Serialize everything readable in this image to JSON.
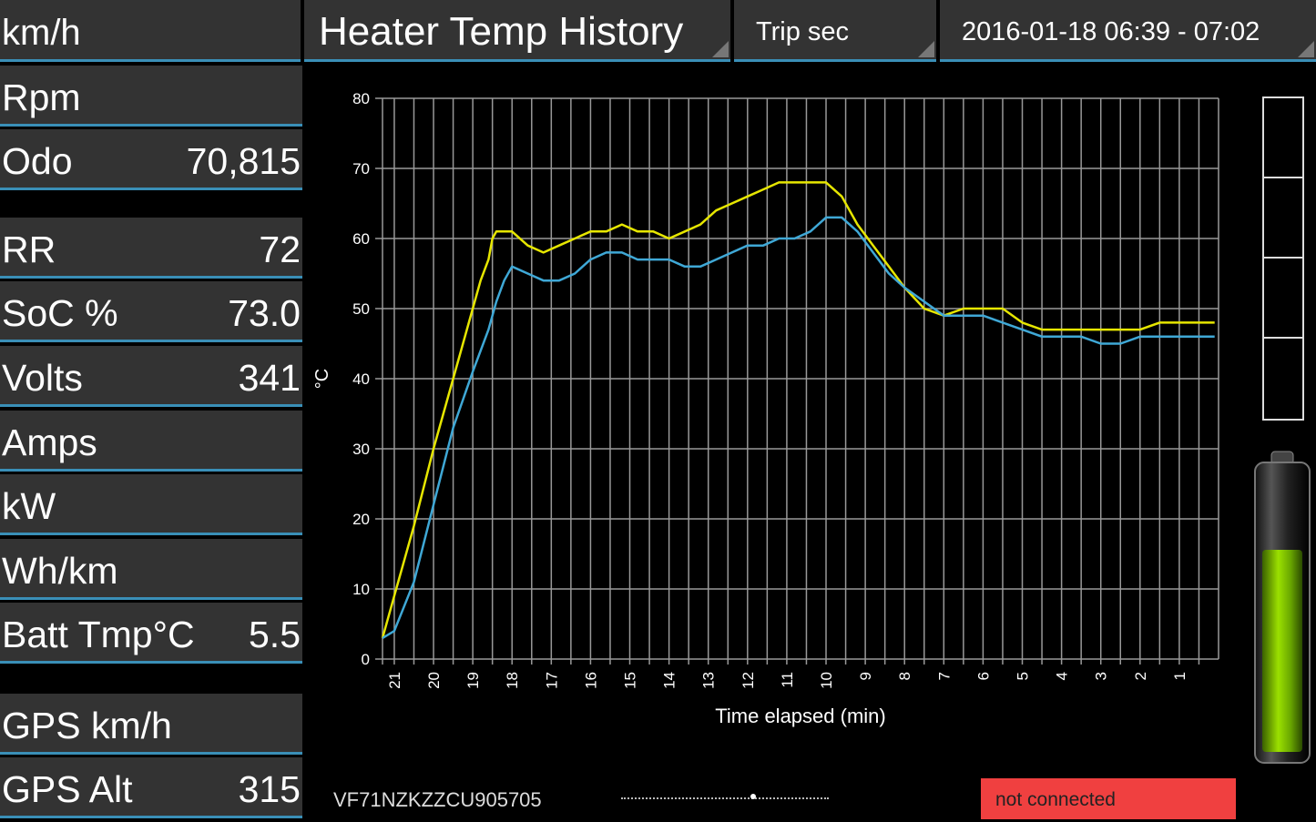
{
  "header": {
    "speed_label": "km/h",
    "title": "Heater Temp History",
    "trip_label": "Trip sec",
    "date_range": "2016-01-18 06:39 - 07:02"
  },
  "left_panel": {
    "rows": [
      {
        "label": "Rpm",
        "value": ""
      },
      {
        "label": "Odo",
        "value": "70,815"
      },
      {
        "label": "RR",
        "value": "72"
      },
      {
        "label": "SoC %",
        "value": "73.0"
      },
      {
        "label": "Volts",
        "value": "341"
      },
      {
        "label": "Amps",
        "value": ""
      },
      {
        "label": "kW",
        "value": ""
      },
      {
        "label": "Wh/km",
        "value": ""
      },
      {
        "label": "Batt Tmp°C",
        "value": "5.5"
      },
      {
        "label": "GPS km/h",
        "value": ""
      },
      {
        "label": "GPS Alt",
        "value": "315"
      }
    ]
  },
  "chart_data": {
    "type": "line",
    "title": "",
    "xlabel": "Time elapsed (min)",
    "ylabel": "°C",
    "ylim": [
      0,
      80
    ],
    "y_ticks": [
      0,
      10,
      20,
      30,
      40,
      50,
      60,
      70,
      80
    ],
    "x_ticks": [
      21,
      20,
      19,
      18,
      17,
      16,
      15,
      14,
      13,
      12,
      11,
      10,
      9,
      8,
      7,
      6,
      5,
      4,
      3,
      2,
      1
    ],
    "xlim": [
      21.3,
      0
    ],
    "grid": true,
    "series": [
      {
        "color": "#e6e600",
        "x": [
          21.3,
          21.0,
          20.5,
          20.0,
          19.5,
          19.0,
          18.8,
          18.6,
          18.5,
          18.4,
          18.2,
          18.0,
          17.6,
          17.2,
          16.8,
          16.4,
          16.0,
          15.6,
          15.2,
          14.8,
          14.4,
          14.0,
          13.6,
          13.2,
          12.8,
          12.4,
          12.0,
          11.6,
          11.2,
          10.8,
          10.4,
          10.0,
          9.6,
          9.2,
          8.8,
          8.4,
          8.0,
          7.5,
          7.0,
          6.5,
          6.0,
          5.5,
          5.0,
          4.5,
          4.0,
          3.5,
          3.0,
          2.5,
          2.0,
          1.5,
          1.0,
          0.5,
          0.1
        ],
        "y": [
          3,
          9,
          19,
          30,
          40,
          50,
          54,
          57,
          60,
          61,
          61,
          61,
          59,
          58,
          59,
          60,
          61,
          61,
          62,
          61,
          61,
          60,
          61,
          62,
          64,
          65,
          66,
          67,
          68,
          68,
          68,
          68,
          66,
          62,
          59,
          56,
          53,
          50,
          49,
          50,
          50,
          50,
          48,
          47,
          47,
          47,
          47,
          47,
          47,
          48,
          48,
          48,
          48
        ]
      },
      {
        "color": "#3fa8d6",
        "x": [
          21.3,
          21.0,
          20.5,
          20.0,
          19.5,
          19.0,
          18.6,
          18.4,
          18.2,
          18.0,
          17.6,
          17.2,
          16.8,
          16.4,
          16.0,
          15.6,
          15.2,
          14.8,
          14.4,
          14.0,
          13.6,
          13.2,
          12.8,
          12.4,
          12.0,
          11.6,
          11.2,
          10.8,
          10.4,
          10.0,
          9.6,
          9.2,
          8.8,
          8.4,
          8.0,
          7.5,
          7.0,
          6.5,
          6.0,
          5.5,
          5.0,
          4.5,
          4.0,
          3.5,
          3.0,
          2.5,
          2.0,
          1.5,
          1.0,
          0.5,
          0.1
        ],
        "y": [
          3,
          4,
          11,
          22,
          33,
          41,
          47,
          51,
          54,
          56,
          55,
          54,
          54,
          55,
          57,
          58,
          58,
          57,
          57,
          57,
          56,
          56,
          57,
          58,
          59,
          59,
          60,
          60,
          61,
          63,
          63,
          61,
          58,
          55,
          53,
          51,
          49,
          49,
          49,
          48,
          47,
          46,
          46,
          46,
          45,
          45,
          46,
          46,
          46,
          46,
          46
        ]
      }
    ]
  },
  "footer": {
    "vin": "VF71NZKZZCU905705",
    "status": "not connected"
  },
  "colors": {
    "accent": "#3a8fb7",
    "status_bg": "#f04040",
    "battery_fill": "#8fd400"
  }
}
